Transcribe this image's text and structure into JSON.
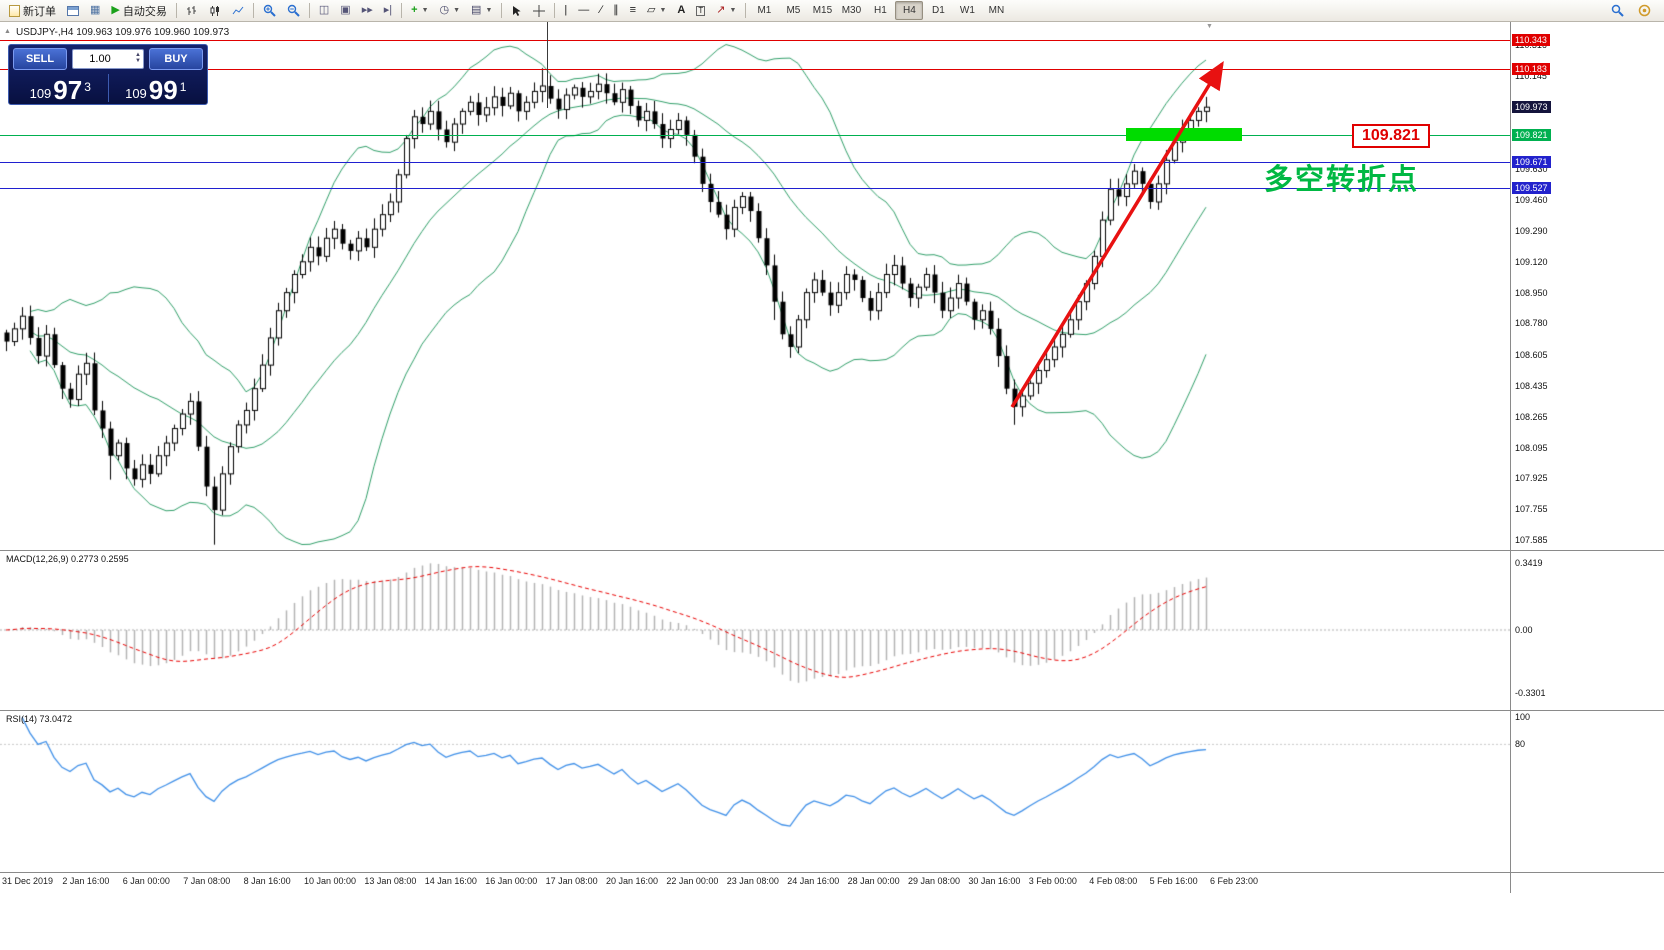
{
  "toolbar": {
    "new_order_label": "新订单",
    "autotrading_label": "自动交易",
    "timeframes": [
      "M1",
      "M5",
      "M15",
      "M30",
      "H1",
      "H4",
      "D1",
      "W1",
      "MN"
    ],
    "active_timeframe": "H4"
  },
  "symbol_info": {
    "text": "USDJPY-,H4  109.963 109.976 109.960 109.973"
  },
  "one_click": {
    "sell_label": "SELL",
    "buy_label": "BUY",
    "volume": "1.00",
    "sell_price_small": "109",
    "sell_price_big": "97",
    "sell_price_sup": "3",
    "buy_price_small": "109",
    "buy_price_big": "99",
    "buy_price_sup": "1"
  },
  "annotations": {
    "turning_point_text": "多空转折点",
    "price_callout": "109.821"
  },
  "price_axis": {
    "scale": [
      {
        "text": "110.316",
        "price": 110.316
      },
      {
        "text": "110.145",
        "price": 110.145
      },
      {
        "text": "109.802",
        "price": 109.802
      },
      {
        "text": "109.630",
        "price": 109.63
      },
      {
        "text": "109.460",
        "price": 109.46
      },
      {
        "text": "109.290",
        "price": 109.29
      },
      {
        "text": "109.120",
        "price": 109.12
      },
      {
        "text": "108.950",
        "price": 108.95
      },
      {
        "text": "108.780",
        "price": 108.78
      },
      {
        "text": "108.605",
        "price": 108.605
      },
      {
        "text": "108.435",
        "price": 108.435
      },
      {
        "text": "108.265",
        "price": 108.265
      },
      {
        "text": "108.095",
        "price": 108.095
      },
      {
        "text": "107.925",
        "price": 107.925
      },
      {
        "text": "107.755",
        "price": 107.755
      },
      {
        "text": "107.585",
        "price": 107.585
      }
    ],
    "markers": [
      {
        "text": "110.343",
        "price": 110.343,
        "bg": "#e00000"
      },
      {
        "text": "110.183",
        "price": 110.183,
        "bg": "#e00000"
      },
      {
        "text": "109.973",
        "price": 109.973,
        "bg": "#14143c"
      },
      {
        "text": "109.821",
        "price": 109.821,
        "bg": "#00b050"
      },
      {
        "text": "109.671",
        "price": 109.671,
        "bg": "#2222cc"
      },
      {
        "text": "109.527",
        "price": 109.527,
        "bg": "#2222cc"
      }
    ]
  },
  "panels": {
    "macd": {
      "label": "MACD(12,26,9) 0.2773 0.2595",
      "scale_top": "0.3419",
      "scale_zero": "0.00",
      "scale_bottom": "-0.3301"
    },
    "rsi": {
      "label": "RSI(14) 73.0472",
      "scale_top": "100",
      "scale_high": "80"
    }
  },
  "time_axis": {
    "labels": [
      "31 Dec 2019",
      "2 Jan 16:00",
      "6 Jan 00:00",
      "7 Jan 08:00",
      "8 Jan 16:00",
      "10 Jan 00:00",
      "13 Jan 08:00",
      "14 Jan 16:00",
      "16 Jan 00:00",
      "17 Jan 08:00",
      "20 Jan 16:00",
      "22 Jan 00:00",
      "23 Jan 08:00",
      "24 Jan 16:00",
      "28 Jan 00:00",
      "29 Jan 08:00",
      "30 Jan 16:00",
      "3 Feb 00:00",
      "4 Feb 08:00",
      "5 Feb 16:00",
      "6 Feb 23:00"
    ]
  },
  "chart_data": {
    "type": "candlestick+indicators",
    "symbol": "USDJPY-",
    "timeframe": "H4",
    "current_bar": {
      "open": 109.963,
      "high": 109.976,
      "low": 109.96,
      "close": 109.973
    },
    "main_ylim": [
      107.53,
      110.443
    ],
    "closes": [
      108.68,
      108.75,
      108.82,
      108.7,
      108.6,
      108.72,
      108.55,
      108.42,
      108.36,
      108.5,
      108.56,
      108.3,
      108.2,
      108.05,
      108.12,
      107.98,
      107.92,
      108.0,
      107.95,
      108.05,
      108.12,
      108.2,
      108.28,
      108.35,
      108.1,
      107.88,
      107.75,
      107.95,
      108.1,
      108.22,
      108.3,
      108.42,
      108.55,
      108.7,
      108.85,
      108.95,
      109.05,
      109.12,
      109.2,
      109.15,
      109.25,
      109.3,
      109.22,
      109.18,
      109.25,
      109.2,
      109.3,
      109.38,
      109.45,
      109.6,
      109.8,
      109.92,
      109.88,
      109.95,
      109.85,
      109.78,
      109.88,
      109.95,
      110.0,
      109.93,
      109.97,
      110.03,
      109.98,
      110.05,
      109.95,
      110.0,
      110.06,
      110.09,
      110.02,
      109.96,
      110.04,
      110.08,
      110.03,
      110.06,
      110.1,
      110.05,
      110.0,
      110.07,
      109.98,
      109.9,
      109.95,
      109.88,
      109.8,
      109.85,
      109.9,
      109.82,
      109.7,
      109.55,
      109.45,
      109.38,
      109.3,
      109.42,
      109.48,
      109.4,
      109.25,
      109.1,
      108.9,
      108.72,
      108.65,
      108.8,
      108.95,
      109.02,
      108.95,
      108.88,
      108.95,
      109.05,
      109.02,
      108.92,
      108.85,
      108.95,
      109.05,
      109.1,
      109.0,
      108.92,
      108.98,
      109.05,
      108.95,
      108.85,
      108.92,
      109.0,
      108.9,
      108.8,
      108.85,
      108.75,
      108.6,
      108.42,
      108.32,
      108.38,
      108.45,
      108.52,
      108.58,
      108.65,
      108.72,
      108.8,
      108.9,
      109.0,
      109.15,
      109.35,
      109.52,
      109.48,
      109.55,
      109.62,
      109.55,
      109.45,
      109.55,
      109.68,
      109.78,
      109.85,
      109.9,
      109.95,
      109.973
    ],
    "wick_low_extra": {
      "13": 0.08,
      "26": 0.14,
      "96": 0.05,
      "126": 0.05
    },
    "wick_high_extra": {
      "67": 0.04,
      "150": 0.03
    },
    "bollinger": {
      "period": 20,
      "deviation": 2
    },
    "macd": {
      "fast": 12,
      "slow": 26,
      "signal_period": 9,
      "main_value": 0.2773,
      "signal_value": 0.2595,
      "ylim": [
        -0.4,
        0.4
      ],
      "scale_max": 0.3419
    },
    "rsi": {
      "period": 14,
      "value": 73.0472,
      "ylim": [
        -13,
        104
      ],
      "level": 80
    },
    "hlines": [
      {
        "price": 110.343,
        "color": "#e00000"
      },
      {
        "price": 110.183,
        "color": "#e00000"
      },
      {
        "price": 109.821,
        "color": "#00b050"
      },
      {
        "price": 109.671,
        "color": "#2020d0"
      },
      {
        "price": 109.527,
        "color": "#2020d0"
      }
    ]
  }
}
